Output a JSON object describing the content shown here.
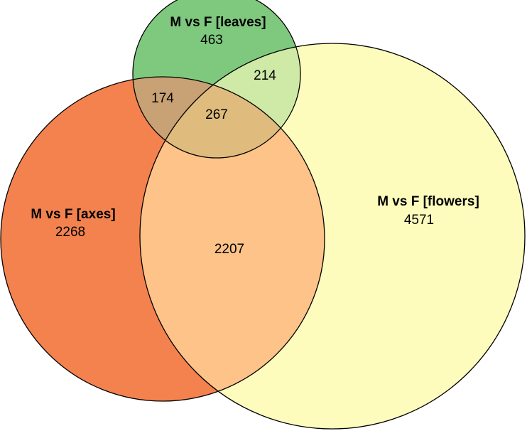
{
  "sets": [
    {
      "id": "leaves",
      "label": "M vs F [leaves]",
      "only_count": "463",
      "color": "#7fc97f"
    },
    {
      "id": "axes",
      "label": "M vs F [axes]",
      "only_count": "2268",
      "color": "#f4824e"
    },
    {
      "id": "flowers",
      "label": "M vs F [flowers]",
      "only_count": "4571",
      "color": "#fefcbd"
    }
  ],
  "intersections": {
    "leaves_axes": "174",
    "leaves_flowers": "214",
    "axes_flowers": "2207",
    "all_three": "267"
  },
  "colors": {
    "leaves_axes": "#c8a274",
    "leaves_flowers": "#cfe9a6",
    "axes_flowers": "#fdc389",
    "all_three": "#dfbc7d",
    "outline": "#000000"
  }
}
